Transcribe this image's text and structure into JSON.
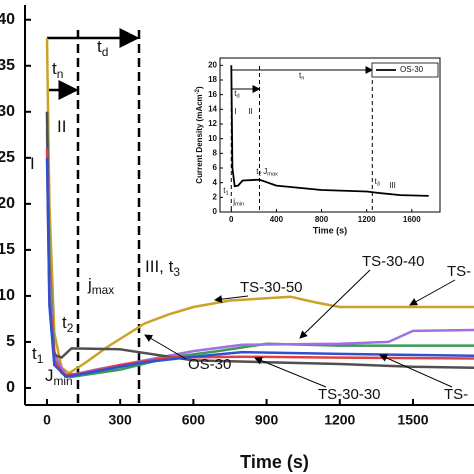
{
  "chart_data": [
    {
      "type": "line",
      "xlabel": "Time (s)",
      "xlim": [
        -90,
        1750
      ],
      "ylim": [
        -1.85,
        41.6
      ],
      "xticks": [
        0,
        300,
        600,
        900,
        1200,
        1500
      ],
      "yticks": [
        0,
        5,
        10,
        15,
        20,
        25,
        30,
        35,
        40
      ],
      "series": [
        {
          "name": "TS-30-50",
          "color": "#c9a227",
          "x": [
            0,
            10,
            30,
            60,
            90,
            150,
            250,
            400,
            500,
            600,
            750,
            1000,
            1100,
            1200,
            1750
          ],
          "values": [
            38,
            20,
            6,
            2.2,
            1.6,
            2.6,
            4.5,
            7,
            8,
            8.8,
            9.5,
            9.9,
            9.3,
            8.8,
            8.8
          ]
        },
        {
          "name": "TS-30-40",
          "color": "#3a9a5a",
          "x": [
            0,
            10,
            30,
            60,
            100,
            300,
            500,
            700,
            900,
            1200,
            1750
          ],
          "values": [
            30,
            14,
            4,
            1.6,
            1.2,
            2,
            3.3,
            4,
            4.8,
            4.6,
            4.6
          ]
        },
        {
          "name": "TS-",
          "color": "#a070e0",
          "x": [
            0,
            10,
            30,
            80,
            200,
            400,
            600,
            800,
            1200,
            1400,
            1500,
            1750
          ],
          "values": [
            28,
            12,
            3.5,
            1.3,
            2,
            3,
            4,
            4.7,
            4.8,
            5,
            6.2,
            6.3
          ]
        },
        {
          "name": "OS-30",
          "color": "#505050",
          "x": [
            0,
            10,
            30,
            60,
            100,
            300,
            600,
            900,
            1200,
            1500,
            1750
          ],
          "values": [
            30,
            10,
            3.6,
            3.3,
            4.3,
            4.2,
            3,
            2.8,
            2.6,
            2.3,
            2.2
          ]
        },
        {
          "name": "TS-30-30",
          "color": "#e04040",
          "x": [
            0,
            10,
            30,
            70,
            150,
            300,
            500,
            800,
            1200,
            1750
          ],
          "values": [
            26,
            10,
            3,
            1.4,
            1.6,
            2.5,
            3.3,
            3.4,
            3.3,
            3.2
          ]
        },
        {
          "name": "TS-",
          "color": "#3050d0",
          "x": [
            0,
            10,
            30,
            80,
            200,
            400,
            600,
            800,
            1200,
            1750
          ],
          "values": [
            25,
            9,
            2.5,
            1.2,
            1.8,
            2.8,
            3.4,
            3.9,
            3.7,
            3.5
          ]
        }
      ],
      "annotations": [
        {
          "text": "t",
          "sub": "d"
        },
        {
          "text": "t",
          "sub": "n"
        },
        {
          "text": "I"
        },
        {
          "text": "II"
        },
        {
          "text": "III, t",
          "sub": "3"
        },
        {
          "text": "j",
          "sub": "max"
        },
        {
          "text": "t",
          "sub": "2"
        },
        {
          "text": "t",
          "sub": "1"
        },
        {
          "text": "J",
          "sub": "min"
        }
      ]
    },
    {
      "type": "line",
      "xlabel": "Time (s)",
      "ylabel": "Current Density (mAcm",
      "ylabel_sup": "-2",
      "ylabel_end": ")",
      "xlim": [
        -100,
        1850
      ],
      "ylim": [
        0,
        21
      ],
      "xticks": [
        0,
        400,
        800,
        1200,
        1600
      ],
      "yticks": [
        0,
        2,
        4,
        6,
        8,
        10,
        12,
        14,
        16,
        18,
        20
      ],
      "legend": "upper right",
      "series": [
        {
          "name": "OS-30",
          "color": "#000000",
          "x": [
            0,
            10,
            30,
            60,
            100,
            250,
            400,
            800,
            1200,
            1300,
            1500,
            1750
          ],
          "values": [
            20,
            6,
            3.5,
            3.6,
            4.3,
            4.4,
            3.6,
            3,
            2.8,
            2.6,
            2.3,
            2.2
          ]
        }
      ],
      "annotations": [
        {
          "text": "t",
          "sub": "n"
        },
        {
          "text": "t",
          "sub": "d"
        },
        {
          "text": "I"
        },
        {
          "text": "II"
        },
        {
          "text": "III"
        },
        {
          "text": "t",
          "sub": "1"
        },
        {
          "text": "t",
          "sub": "2"
        },
        {
          "text": "J",
          "sub": "max"
        },
        {
          "text": "j",
          "sub": "min"
        },
        {
          "text": "t",
          "sub": "3"
        }
      ]
    }
  ]
}
